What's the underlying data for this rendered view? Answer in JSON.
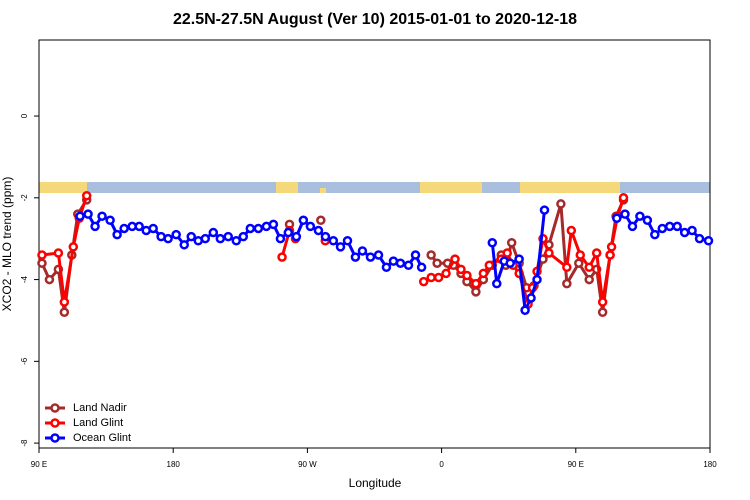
{
  "chart_data": {
    "type": "line",
    "title": "22.5N-27.5N August (Ver 10)   2015-01-01 to 2020-12-18",
    "x_label": "Longitude",
    "y_label": "XCO2 - MLO trend (ppm)",
    "xlim": [
      90,
      540
    ],
    "ylim": [
      -8.12,
      1.86
    ],
    "xticks": [
      {
        "value": 90,
        "label": "90 E"
      },
      180,
      {
        "value": 270,
        "label": "90 W"
      },
      {
        "value": 360,
        "label": "0"
      },
      {
        "value": 450,
        "label": "90 E"
      },
      {
        "value": 540,
        "label": "180"
      }
    ],
    "yticks": [
      0,
      -2,
      -4,
      -6,
      -8
    ],
    "legend": "bottom-left",
    "series": [
      {
        "name": "Land Nadir",
        "color": "#a52a2a",
        "x": [
          92,
          97,
          103,
          107,
          112,
          116,
          122,
          null,
          258,
          null,
          279,
          null,
          353,
          357,
          364,
          368,
          373,
          377,
          383,
          388,
          394,
          400,
          403,
          407,
          412,
          417,
          422,
          428,
          432,
          440,
          444,
          452,
          459,
          464,
          468,
          473,
          477,
          482
        ],
        "values": [
          -3.6,
          -4.0,
          -3.75,
          -4.8,
          -3.4,
          -2.4,
          -2.05,
          null,
          -2.65,
          null,
          -2.55,
          null,
          -3.4,
          -3.6,
          -3.6,
          -3.65,
          -3.85,
          -4.05,
          -4.3,
          -4.0,
          -3.65,
          -3.4,
          -3.65,
          -3.1,
          -3.6,
          -4.2,
          -4.15,
          -3.5,
          -3.15,
          -2.15,
          -4.1,
          -3.6,
          -4.0,
          -3.75,
          -4.8,
          -3.4,
          -2.45,
          -2.05
        ]
      },
      {
        "name": "Land Glint",
        "color": "#ff0000",
        "x": [
          92,
          103,
          107,
          113,
          117,
          122,
          null,
          253,
          258,
          262,
          null,
          282,
          null,
          348,
          353,
          358,
          363,
          369,
          373,
          377,
          383,
          388,
          392,
          400,
          404,
          408,
          412,
          418,
          421,
          424,
          428,
          432,
          444,
          447,
          453,
          459,
          464,
          468,
          473,
          474,
          478,
          482
        ],
        "values": [
          -3.4,
          -3.35,
          -4.55,
          -3.2,
          -2.5,
          -1.95,
          null,
          -3.45,
          -2.8,
          -3.0,
          null,
          -3.05,
          null,
          -4.05,
          -3.95,
          -3.95,
          -3.85,
          -3.5,
          -3.75,
          -3.9,
          -4.1,
          -3.85,
          -3.65,
          -3.5,
          -3.35,
          -3.65,
          -3.85,
          -4.6,
          -4.2,
          -3.8,
          -3.0,
          -3.35,
          -3.7,
          -2.8,
          -3.4,
          -3.7,
          -3.35,
          -4.55,
          -3.4,
          -3.2,
          -2.45,
          -2.0
        ]
      },
      {
        "name": "Ocean Glint",
        "color": "#0000ff",
        "x": [
          117.5,
          122.9,
          127.6,
          132.3,
          137.7,
          142.4,
          147.1,
          152.5,
          157.2,
          161.9,
          166.6,
          171.9,
          176.6,
          182,
          187.4,
          192.1,
          196.8,
          201.5,
          206.9,
          211.6,
          216.9,
          222.3,
          227,
          231.7,
          237.1,
          242.5,
          247.2,
          251.9,
          257.2,
          262.6,
          267.3,
          272,
          277.4,
          282.1,
          287.4,
          292.2,
          296.9,
          302.2,
          306.9,
          312.3,
          317.7,
          323,
          327.7,
          332.4,
          337.8,
          342.5,
          346.6,
          null,
          394,
          397,
          402,
          406,
          412,
          416,
          420,
          424,
          429,
          null,
          477.5,
          483,
          488,
          493,
          498,
          503,
          508,
          513,
          518,
          523,
          528,
          533,
          539
        ],
        "values": [
          -2.45,
          -2.4,
          -2.7,
          -2.45,
          -2.55,
          -2.9,
          -2.75,
          -2.7,
          -2.7,
          -2.8,
          -2.75,
          -2.95,
          -3.0,
          -2.9,
          -3.15,
          -2.95,
          -3.05,
          -3.0,
          -2.85,
          -3.0,
          -2.95,
          -3.05,
          -2.95,
          -2.75,
          -2.75,
          -2.7,
          -2.65,
          -3.0,
          -2.85,
          -2.95,
          -2.55,
          -2.7,
          -2.8,
          -2.95,
          -3.05,
          -3.2,
          -3.05,
          -3.45,
          -3.3,
          -3.45,
          -3.4,
          -3.7,
          -3.55,
          -3.6,
          -3.65,
          -3.4,
          -3.7,
          null,
          -3.1,
          -4.1,
          -3.55,
          -3.6,
          -3.5,
          -4.75,
          -4.45,
          -4.0,
          -2.3,
          null,
          -2.5,
          -2.4,
          -2.7,
          -2.45,
          -2.55,
          -2.9,
          -2.75,
          -2.7,
          -2.7,
          -2.85,
          -2.8,
          -3.0,
          -3.05
        ]
      }
    ]
  }
}
